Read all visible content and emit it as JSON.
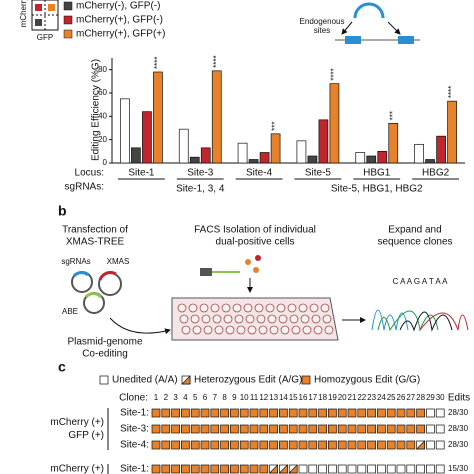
{
  "chart_data": {
    "type": "bar",
    "y_label": "Editing Efficiency (%G)",
    "locus_label": "Locus:",
    "categories": [
      "Site-1",
      "Site-3",
      "Site-4",
      "Site-5",
      "HBG1",
      "HBG2"
    ],
    "sgrna_label": "sgRNAs:",
    "sgrna_groups": [
      "Site-1, 3, 4",
      "Site-5, HBG1, HBG2"
    ],
    "series": [
      {
        "name": null,
        "color": "#ffffff",
        "values": [
          55,
          29,
          17,
          19,
          9,
          16
        ]
      },
      {
        "name": "mCherry(-), GFP(-)",
        "color": "#444444",
        "values": [
          13,
          5,
          3,
          6,
          6,
          3
        ]
      },
      {
        "name": "mCherry(+), GFP(-)",
        "color": "#c0262d",
        "values": [
          44,
          13,
          9,
          37,
          10,
          23
        ]
      },
      {
        "name": "mCherry(+), GFP(+)",
        "color": "#e8822a",
        "values": [
          78,
          79,
          25,
          68,
          34,
          53
        ]
      }
    ],
    "significance": [
      "****",
      "****",
      "***",
      "****",
      "***",
      "****"
    ],
    "ylim": [
      0,
      90
    ],
    "yticks": [
      0,
      20,
      40,
      60,
      80
    ],
    "legend_axes": {
      "y": "mCherry",
      "x": "GFP"
    },
    "sites_label": [
      "Endogenous",
      "sites"
    ]
  },
  "panel_b": {
    "letter": "b",
    "steps": [
      [
        "Transfection of",
        "XMAS-TREE"
      ],
      [
        "FACS Isolation of individual",
        "dual-positive cells"
      ],
      [
        "Expand and",
        "sequence clones"
      ]
    ],
    "sgrnas": "sgRNAs",
    "xmas": "XMAS",
    "abe": "ABE",
    "coediting": [
      "Plasmid-genome",
      "Co-editing"
    ],
    "sequence": "C A A G A T A A"
  },
  "panel_c": {
    "letter": "c",
    "legend": [
      "Unedited (A/A)",
      "Heterozygous Edit (A/G)",
      "Homozygous Edit (G/G)"
    ],
    "clone_label": "Clone:",
    "edits_label": "Edits",
    "clones": [
      1,
      2,
      3,
      4,
      5,
      6,
      7,
      8,
      9,
      10,
      11,
      12,
      13,
      14,
      15,
      16,
      17,
      18,
      19,
      20,
      21,
      22,
      23,
      24,
      25,
      26,
      27,
      28,
      29,
      30
    ],
    "groups": [
      {
        "label": [
          "mCherry (+)",
          "GFP (+)"
        ],
        "rows": [
          {
            "site": "Site-1:",
            "edits": "28/30",
            "states": "HHHHHHHHHHHHHHHHHHHHHHHHHHHHUU"
          },
          {
            "site": "Site-3:",
            "edits": "28/30",
            "states": "HHHHHHHHHHHHHHHHHHHHHHHHHHHHUU"
          },
          {
            "site": "Site-4:",
            "edits": "28/30",
            "states": "HHHHHHHHHHHHHHHHHHHHHHHHHHHEUU"
          }
        ]
      },
      {
        "label": [
          "mCherry (+)"
        ],
        "rows": [
          {
            "site": "Site-1:",
            "edits": "15/30",
            "states": "HHHHHHHHHHHHEEEUUUUUUUUUUUUUUU"
          }
        ]
      }
    ]
  }
}
